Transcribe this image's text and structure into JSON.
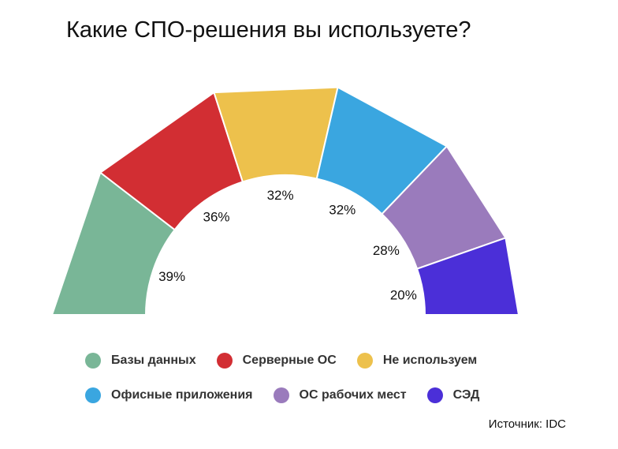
{
  "title": "Какие СПО-решения вы используете?",
  "source": "Источник: IDC",
  "chart_data": {
    "type": "pie",
    "subtype": "semi-donut",
    "title": "Какие СПО-решения вы используете?",
    "legend_position": "bottom",
    "series": [
      {
        "name": "Базы данных",
        "value": 39,
        "label": "39%",
        "color": "#79b697"
      },
      {
        "name": "Серверные ОС",
        "value": 36,
        "label": "36%",
        "color": "#d22e33"
      },
      {
        "name": "Не используем",
        "value": 32,
        "label": "32%",
        "color": "#edc14c"
      },
      {
        "name": "Офисные приложения",
        "value": 32,
        "label": "32%",
        "color": "#3aa6e0"
      },
      {
        "name": "ОС рабочих мест",
        "value": 28,
        "label": "28%",
        "color": "#9a7bbc"
      },
      {
        "name": "СЭД",
        "value": 20,
        "label": "20%",
        "color": "#4b2fd8"
      }
    ]
  }
}
